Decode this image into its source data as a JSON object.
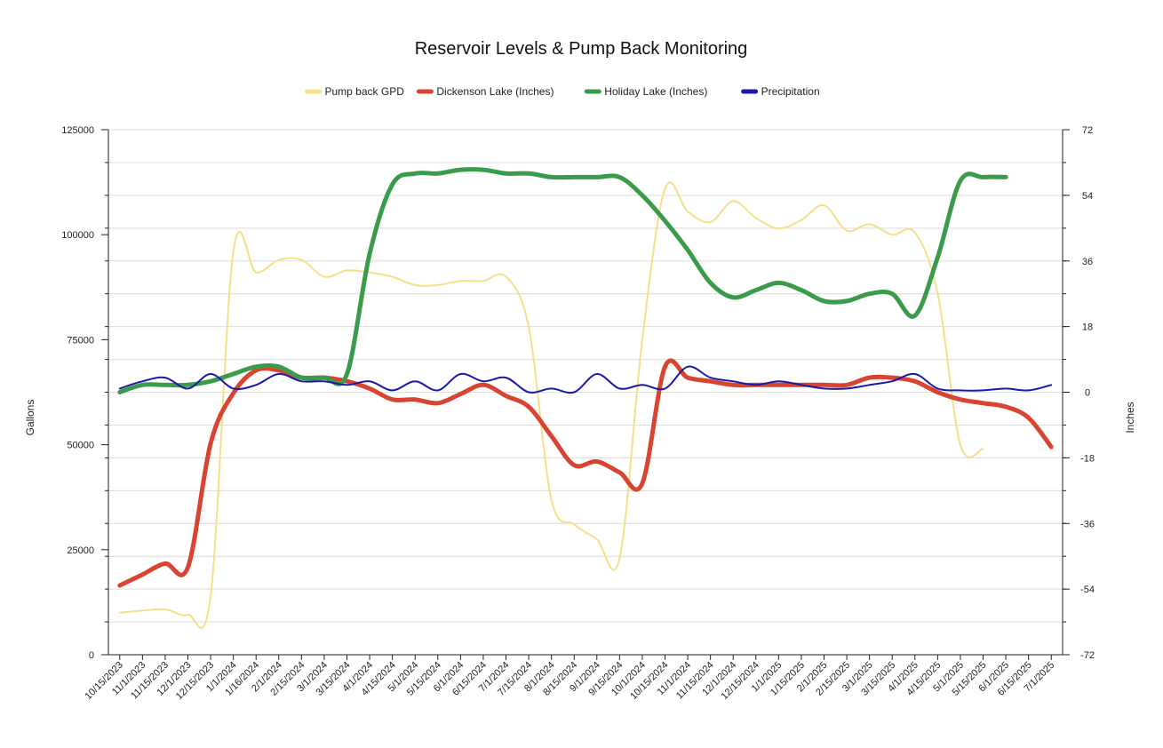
{
  "chart_data": {
    "type": "line",
    "title": "Reservoir Levels & Pump Back Monitoring",
    "ylabel_left": "Gallons",
    "ylabel_right": "Inches",
    "ylim_left": [
      0,
      125000
    ],
    "ylim_right": [
      -72,
      72
    ],
    "left_ticks": [
      "0",
      "25000",
      "50000",
      "75000",
      "100000",
      "125000"
    ],
    "right_ticks": [
      "-72",
      "-54",
      "-36",
      "-18",
      "0",
      "18",
      "36",
      "54",
      "72"
    ],
    "categories": [
      "10/15/2023",
      "11/1/2023",
      "11/15/2023",
      "12/1/2023",
      "12/15/2023",
      "1/1/2024",
      "1/16/2024",
      "2/1/2024",
      "2/15/2024",
      "3/1/2024",
      "3/15/2024",
      "4/1/2024",
      "4/15/2024",
      "5/1/2024",
      "5/15/2024",
      "6/1/2024",
      "6/15/2024",
      "7/1/2024",
      "7/15/2024",
      "8/1/2024",
      "8/15/2024",
      "9/1/2024",
      "9/15/2024",
      "10/1/2024",
      "10/15/2024",
      "11/1/2024",
      "11/15/2024",
      "12/1/2024",
      "12/15/2024",
      "1/1/2025",
      "1/15/2025",
      "2/1/2025",
      "2/15/2025",
      "3/1/2025",
      "3/15/2025",
      "4/1/2025",
      "4/15/2025",
      "5/1/2025",
      "5/15/2025",
      "6/1/2025",
      "6/15/2025",
      "7/1/2025"
    ],
    "grid": true,
    "legend_position": "top",
    "series": [
      {
        "name": "Pump back GPD",
        "axis": "left",
        "color": "#f5e08a",
        "values": [
          10000,
          10500,
          10800,
          9500,
          14000,
          96000,
          91000,
          94000,
          94000,
          90000,
          91500,
          91000,
          90000,
          88000,
          88000,
          89000,
          89000,
          90000,
          78000,
          37000,
          31000,
          27500,
          23000,
          75000,
          111000,
          105500,
          103000,
          108000,
          104000,
          101500,
          103500,
          107000,
          101000,
          102500,
          100000,
          100500,
          86000,
          50000,
          49000,
          null,
          null,
          null
        ]
      },
      {
        "name": "Dickenson Lake (Inches)",
        "axis": "right",
        "color": "#d94432",
        "values": [
          -53,
          -50,
          -47,
          -48,
          -14,
          -0.3,
          6,
          6,
          4,
          4,
          3,
          1,
          -2,
          -2,
          -3,
          -0.5,
          2,
          -1,
          -4,
          -12,
          -20,
          -19,
          -22,
          -25,
          7,
          4,
          3,
          2,
          2,
          2,
          2,
          2,
          2,
          4,
          4,
          3,
          0,
          -2,
          -3,
          -4,
          -7,
          -15
        ]
      },
      {
        "name": "Holiday Lake (Inches)",
        "axis": "right",
        "color": "#3a9c4a",
        "values": [
          0,
          2,
          2,
          2,
          3,
          5,
          7,
          7,
          4,
          4,
          5,
          38,
          57,
          60,
          60,
          61,
          61,
          60,
          60,
          59,
          59,
          59,
          59,
          54,
          47,
          39,
          30,
          26,
          28,
          30,
          28,
          25,
          25,
          27,
          27,
          21,
          37,
          58,
          59,
          59,
          null,
          null
        ]
      },
      {
        "name": "Precipitation",
        "axis": "right",
        "color": "#1a1aa8",
        "values": [
          1,
          3,
          4,
          1,
          5,
          1,
          2,
          5,
          3,
          3,
          2,
          3,
          0.5,
          3,
          0.5,
          5,
          3,
          4,
          0,
          1,
          0,
          5,
          1,
          2,
          1,
          7,
          4,
          3,
          2,
          3,
          2,
          1,
          1,
          2,
          3,
          5,
          1,
          0.5,
          0.5,
          1,
          0.5,
          2
        ]
      }
    ]
  }
}
